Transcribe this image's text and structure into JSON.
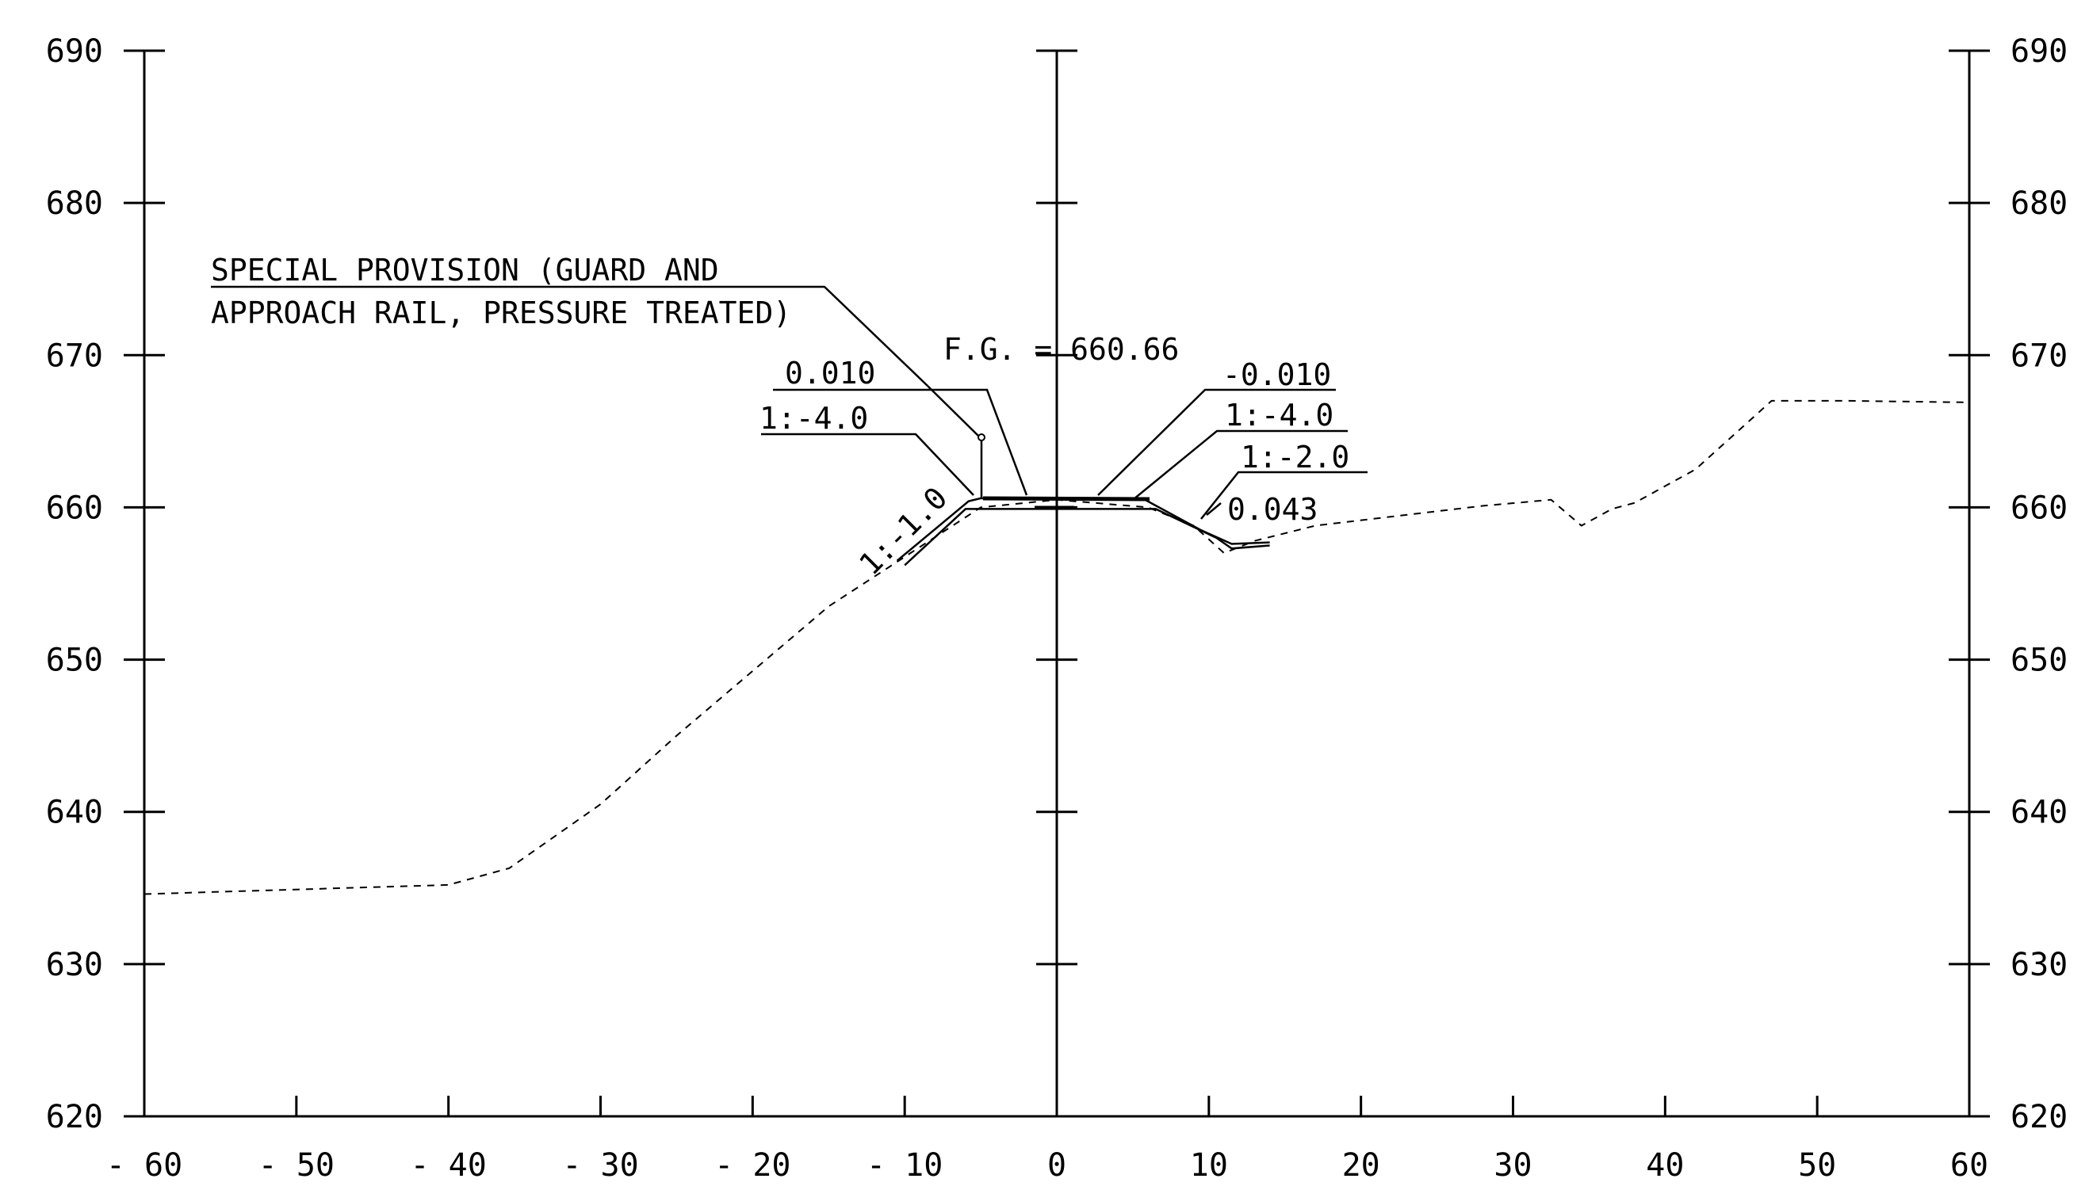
{
  "axes": {
    "x_ticks": [
      "-60",
      "-50",
      "-40",
      "-30",
      "-20",
      "-10",
      "0",
      "10",
      "20",
      "30",
      "40",
      "50",
      "60"
    ],
    "y_ticks": [
      "620",
      "630",
      "640",
      "650",
      "660",
      "670",
      "680",
      "690"
    ]
  },
  "labels": {
    "special_provision_line1": "SPECIAL PROVISION (GUARD AND",
    "special_provision_line2": "APPROACH RAIL, PRESSURE TREATED)",
    "finished_grade": "F.G. = 660.66",
    "left_crossfall": "0.010",
    "left_slope": "1:-4.0",
    "left_fill_slope": "1:-1.0",
    "right_crossfall": "-0.010",
    "right_slope": "1:-4.0",
    "right_slope2": "1:-2.0",
    "right_ditch": "0.043"
  },
  "profiles": {
    "existing_ground": [
      [
        -60,
        634.6
      ],
      [
        -40,
        635.2
      ],
      [
        -36,
        636.3
      ],
      [
        -30,
        640.5
      ],
      [
        -25,
        645.0
      ],
      [
        -15,
        653.5
      ],
      [
        -5,
        660.0
      ],
      [
        0,
        660.5
      ],
      [
        6,
        660.0
      ],
      [
        9,
        658.8
      ],
      [
        11,
        657.0
      ],
      [
        13,
        657.8
      ],
      [
        17,
        658.8
      ],
      [
        28,
        660.1
      ],
      [
        32.5,
        660.5
      ],
      [
        34.5,
        658.8
      ],
      [
        36.5,
        659.9
      ],
      [
        38,
        660.3
      ],
      [
        42,
        662.5
      ],
      [
        47,
        667.0
      ],
      [
        52,
        667.0
      ],
      [
        60,
        666.9
      ]
    ],
    "proposed_top": [
      [
        -10.5,
        656.5
      ],
      [
        -5.8,
        660.4
      ],
      [
        -5,
        660.6
      ],
      [
        5.8,
        660.5
      ],
      [
        9.5,
        658.5
      ],
      [
        11.5,
        657.6
      ],
      [
        14,
        657.7
      ]
    ],
    "proposed_bottom": [
      [
        -10,
        656.2
      ],
      [
        -6,
        659.9
      ],
      [
        6.5,
        659.9
      ],
      [
        10.5,
        658.0
      ],
      [
        11.5,
        657.3
      ],
      [
        14,
        657.5
      ]
    ]
  }
}
